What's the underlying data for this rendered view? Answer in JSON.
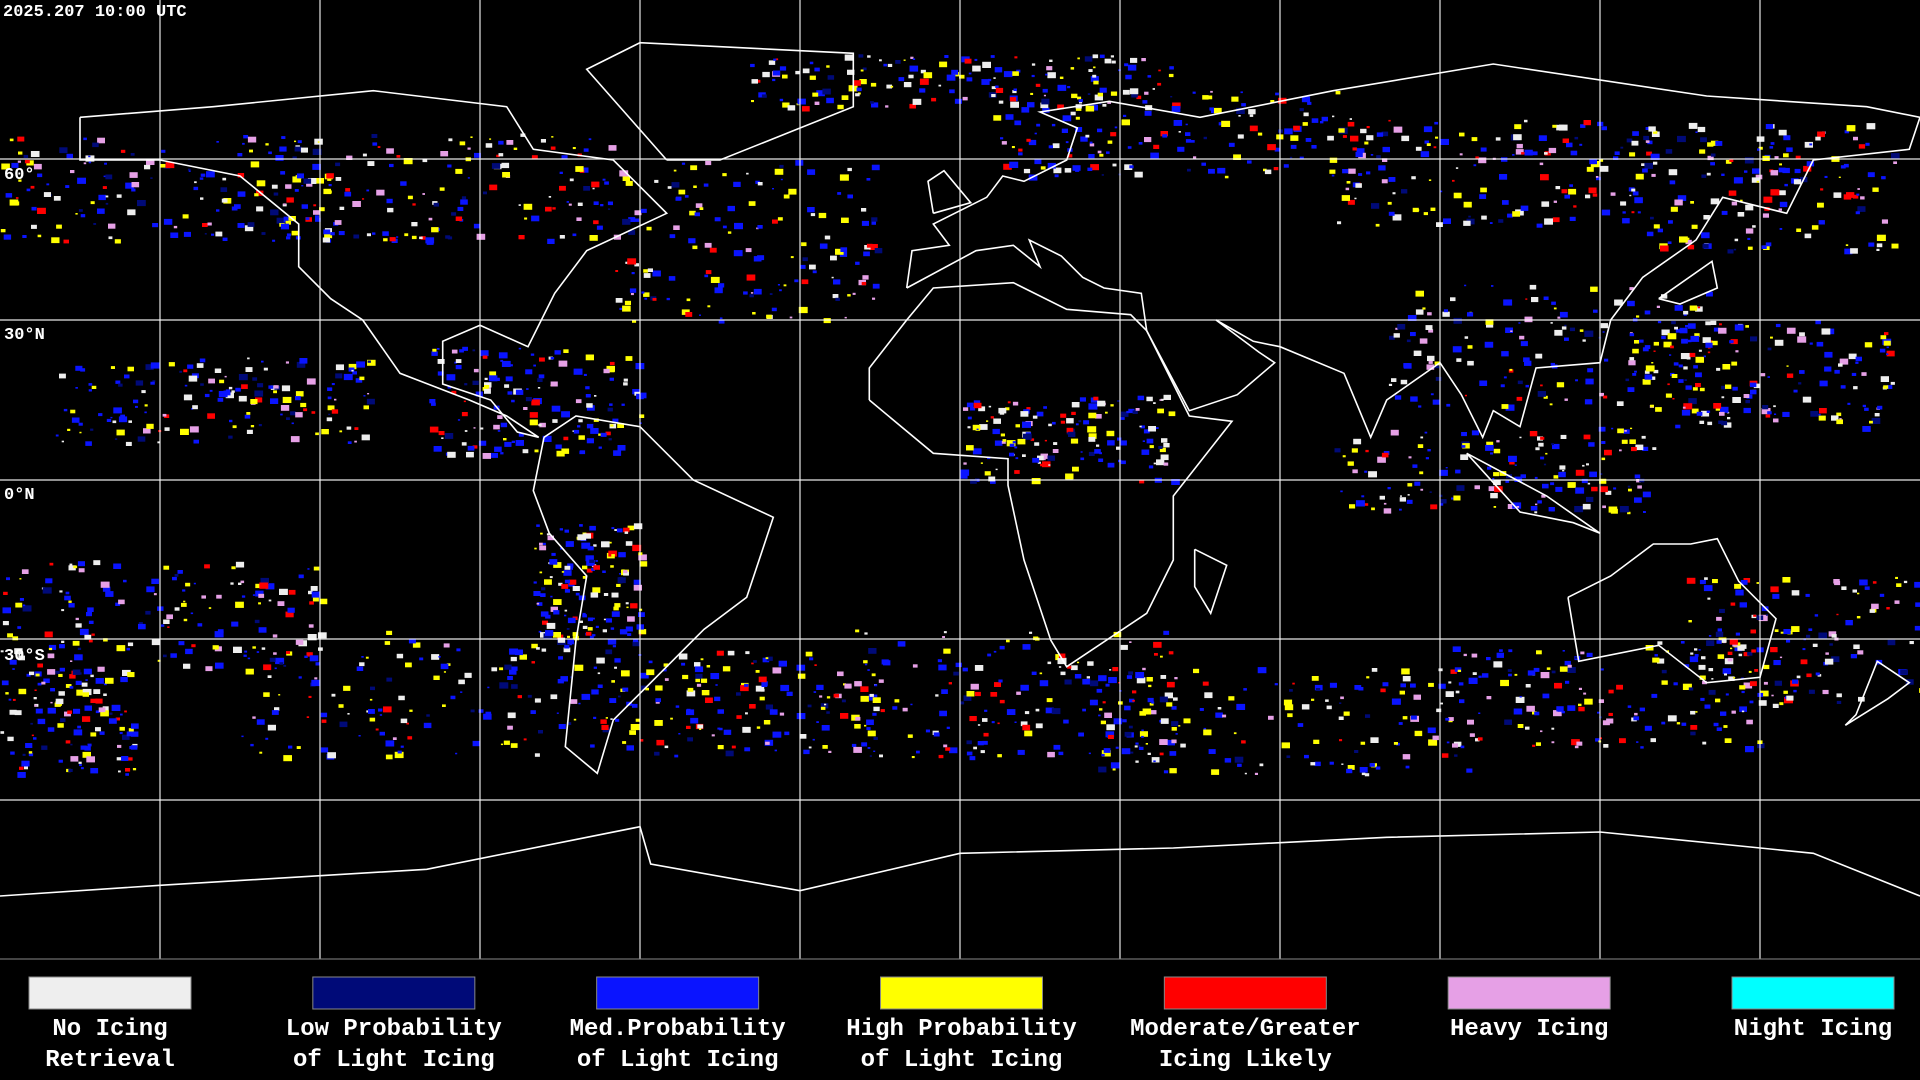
{
  "header": {
    "timestamp": "2025.207 10:00 UTC"
  },
  "latitude_labels": [
    "60°",
    "30°N",
    "0°N",
    "30°S"
  ],
  "legend": [
    {
      "lines": [
        "No Icing",
        "Retrieval"
      ],
      "color": "#eeeeee"
    },
    {
      "lines": [
        "Low Probability",
        "of Light Icing"
      ],
      "color": "#000a78"
    },
    {
      "lines": [
        "Med.Probability",
        "of Light Icing"
      ],
      "color": "#0a14ff"
    },
    {
      "lines": [
        "High Probability",
        "of Light Icing"
      ],
      "color": "#ffff00"
    },
    {
      "lines": [
        "Moderate/Greater",
        "Icing Likely"
      ],
      "color": "#ff0000"
    },
    {
      "lines": [
        "Heavy Icing"
      ],
      "color": "#e6a0e6"
    },
    {
      "lines": [
        "Night Icing"
      ],
      "color": "#00ffff"
    }
  ]
}
